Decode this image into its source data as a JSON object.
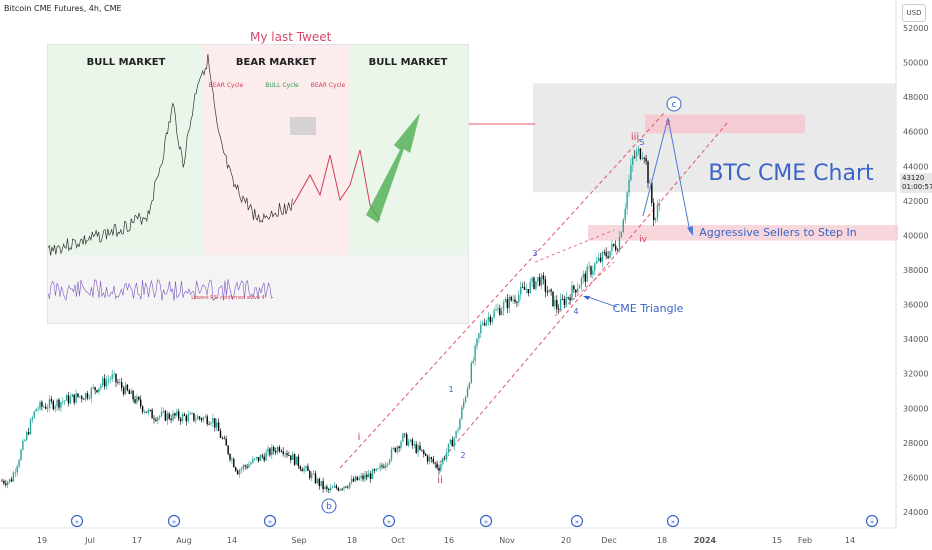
{
  "header": {
    "title": "Bitcoin CME Futures, 4h, CME",
    "currency": "USD"
  },
  "price_tag": {
    "price": "43120",
    "countdown": "01:00:57"
  },
  "inset": {
    "tweet_label": "My last Tweet",
    "markets": [
      "BULL MARKET",
      "BEAR MARKET",
      "BULL MARKET"
    ],
    "cycles": [
      "BEAR Cycle",
      "BULL Cycle",
      "BEAR Cycle"
    ],
    "note": "Lowest RSI confirmed wave 4"
  },
  "annotations": {
    "main_title": "BTC CME Chart",
    "sellers": "Aggressive Sellers to Step In",
    "triangle": "CME Triangle"
  },
  "wave_labels": {
    "b": "b",
    "i": "i",
    "ii": "ii",
    "iii": "iii",
    "iv": "iv",
    "c": "c",
    "one": "1",
    "two": "2",
    "three": "3",
    "four": "4",
    "five": "5"
  },
  "colors": {
    "candle_bull": "#26a69a",
    "candle_bear": "#000000",
    "channel": "#e0546b",
    "wave_blue": "#3a64c8",
    "wave_red": "#d23d52",
    "sell_zone": "#f6c9d0",
    "gray_box": "#e3e3e3"
  },
  "chart_data": {
    "type": "candlestick",
    "y_axis": {
      "ticks": [
        52000,
        50000,
        48000,
        46000,
        44000,
        42000,
        40000,
        38000,
        36000,
        34000,
        32000,
        30000,
        28000,
        26000,
        24000
      ],
      "range": [
        24000,
        52000
      ]
    },
    "x_axis": {
      "tick_labels": [
        "19",
        "Jul",
        "17",
        "Aug",
        "14",
        "Sep",
        "18",
        "Oct",
        "16",
        "Nov",
        "20",
        "Dec",
        "18",
        "2024",
        "15",
        "Feb",
        "14"
      ]
    },
    "price_path": [
      {
        "date": "2023-06-15",
        "price": 25800
      },
      {
        "date": "2023-06-22",
        "price": 30000
      },
      {
        "date": "2023-07-06",
        "price": 30800
      },
      {
        "date": "2023-07-13",
        "price": 31800
      },
      {
        "date": "2023-07-24",
        "price": 29600
      },
      {
        "date": "2023-08-10",
        "price": 29400
      },
      {
        "date": "2023-08-17",
        "price": 26400
      },
      {
        "date": "2023-08-29",
        "price": 27800
      },
      {
        "date": "2023-09-11",
        "price": 25200
      },
      {
        "date": "2023-09-25",
        "price": 26300
      },
      {
        "date": "2023-10-02",
        "price": 28300
      },
      {
        "date": "2023-10-12",
        "price": 26600
      },
      {
        "date": "2023-10-17",
        "price": 28600
      },
      {
        "date": "2023-10-24",
        "price": 35000
      },
      {
        "date": "2023-11-09",
        "price": 37500
      },
      {
        "date": "2023-11-14",
        "price": 35800
      },
      {
        "date": "2023-11-24",
        "price": 38200
      },
      {
        "date": "2023-12-01",
        "price": 39600
      },
      {
        "date": "2023-12-05",
        "price": 44500
      },
      {
        "date": "2023-12-08",
        "price": 45000
      },
      {
        "date": "2023-12-11",
        "price": 40800
      },
      {
        "date": "2023-12-14",
        "price": 43200
      }
    ],
    "zones": {
      "gray_box": [
        42500,
        48800
      ],
      "sell_zone": [
        45900,
        47000
      ],
      "support_zone": [
        39700,
        40600
      ]
    }
  }
}
